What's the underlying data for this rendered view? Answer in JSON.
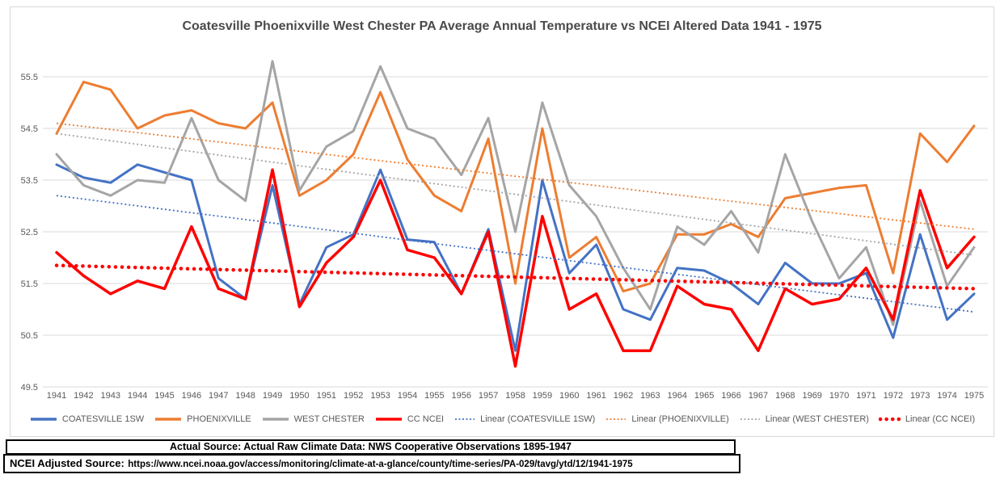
{
  "chart_data": {
    "type": "line",
    "title": "Coatesville Phoenixville West Chester PA Average Annual Temperature vs NCEI Altered Data 1941 - 1975",
    "categories": [
      "1941",
      "1942",
      "1943",
      "1944",
      "1945",
      "1946",
      "1947",
      "1948",
      "1949",
      "1950",
      "1951",
      "1952",
      "1953",
      "1954",
      "1955",
      "1956",
      "1957",
      "1958",
      "1959",
      "1960",
      "1961",
      "1962",
      "1963",
      "1964",
      "1965",
      "1966",
      "1967",
      "1968",
      "1969",
      "1970",
      "1971",
      "1972",
      "1973",
      "1974",
      "1975"
    ],
    "ylim": [
      49.5,
      55.5
    ],
    "yticks": [
      55.5,
      54.5,
      53.5,
      52.5,
      51.5,
      50.5,
      49.5
    ],
    "grid": true,
    "legend_position": "bottom",
    "series": [
      {
        "name": "COATESVILLE 1SW",
        "color": "#4472C4",
        "width": 3,
        "values": [
          53.8,
          53.55,
          53.45,
          53.8,
          53.65,
          53.5,
          51.6,
          51.2,
          53.4,
          51.1,
          52.2,
          52.45,
          53.7,
          52.35,
          52.3,
          51.3,
          52.55,
          50.2,
          53.5,
          51.7,
          52.25,
          51.0,
          50.8,
          51.8,
          51.75,
          51.5,
          51.1,
          51.9,
          51.5,
          51.5,
          51.7,
          50.45,
          52.45,
          50.8,
          51.3
        ]
      },
      {
        "name": "PHOENIXVILLE",
        "color": "#ED7D31",
        "width": 3,
        "values": [
          54.4,
          55.4,
          55.25,
          54.5,
          54.75,
          54.85,
          54.6,
          54.5,
          55.0,
          53.2,
          53.5,
          54.0,
          55.2,
          53.9,
          53.2,
          52.9,
          54.3,
          51.5,
          54.5,
          52.0,
          52.4,
          51.35,
          51.5,
          52.45,
          52.45,
          52.65,
          52.4,
          53.15,
          53.25,
          53.35,
          53.4,
          51.7,
          54.4,
          53.85,
          54.55
        ]
      },
      {
        "name": "WEST CHESTER",
        "color": "#A5A5A5",
        "width": 3,
        "values": [
          54.0,
          53.4,
          53.2,
          53.5,
          53.45,
          54.7,
          53.5,
          53.1,
          55.8,
          53.3,
          54.15,
          54.45,
          55.7,
          54.5,
          54.3,
          53.6,
          54.7,
          52.5,
          55.0,
          53.4,
          52.8,
          51.8,
          51.0,
          52.6,
          52.25,
          52.9,
          52.1,
          54.0,
          52.7,
          51.6,
          52.2,
          50.7,
          53.1,
          51.45,
          52.2
        ]
      },
      {
        "name": "CC NCEI",
        "color": "#FF0000",
        "width": 3.5,
        "values": [
          52.1,
          51.65,
          51.3,
          51.55,
          51.4,
          52.6,
          51.4,
          51.2,
          53.7,
          51.05,
          51.9,
          52.4,
          53.5,
          52.15,
          52.0,
          51.3,
          52.5,
          49.9,
          52.8,
          51.0,
          51.3,
          50.2,
          50.2,
          51.45,
          51.1,
          51.0,
          50.2,
          51.4,
          51.1,
          51.2,
          51.8,
          50.8,
          53.3,
          51.8,
          52.4
        ]
      }
    ],
    "trendlines": [
      {
        "name": "Linear (COATESVILLE 1SW)",
        "color": "#4472C4",
        "start": 53.2,
        "end": 50.95,
        "style": "dotted"
      },
      {
        "name": "Linear (PHOENIXVILLE)",
        "color": "#ED7D31",
        "start": 54.6,
        "end": 52.55,
        "style": "dotted"
      },
      {
        "name": "Linear (WEST CHESTER)",
        "color": "#A5A5A5",
        "start": 54.4,
        "end": 52.05,
        "style": "dotted"
      },
      {
        "name": "Linear (CC NCEI)",
        "color": "#FF0000",
        "start": 51.85,
        "end": 51.4,
        "style": "bold-dotted"
      }
    ]
  },
  "sources": {
    "actual": "Actual Source: Actual Raw Climate Data: NWS Cooperative Observations 1895-1947",
    "ncei_label": "NCEI Adjusted Source:",
    "ncei_url": "https://www.ncei.noaa.gov/access/monitoring/climate-at-a-glance/county/time-series/PA-029/tavg/ytd/12/1941-1975"
  },
  "colors": {
    "gridline": "#D9D9D9",
    "axis_text": "#595959",
    "title_text": "#4A4A4A",
    "source_border": "#000000"
  }
}
